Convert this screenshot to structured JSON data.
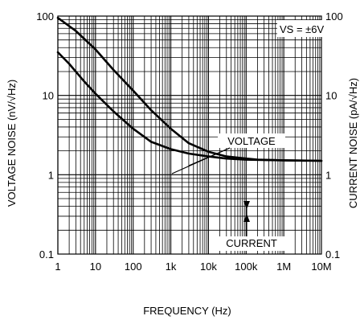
{
  "chart_data": {
    "type": "line",
    "title": "",
    "xlabel": "FREQUENCY (Hz)",
    "ylabel_left": "VOLTAGE NOISE (nV/√Hz)",
    "ylabel_right": "CURRENT  NOISE (pA/√Hz)",
    "x_scale": "log",
    "y_scale": "log",
    "xlim": [
      1,
      10000000
    ],
    "ylim": [
      0.1,
      100
    ],
    "grid": true,
    "x_ticks": [
      "1",
      "10",
      "100",
      "1k",
      "10k",
      "100k",
      "1M",
      "10M"
    ],
    "y_ticks_left": [
      "0.1",
      "1",
      "10",
      "100"
    ],
    "y_ticks_right": [
      "0.1",
      "1",
      "10",
      "100"
    ],
    "annotations": {
      "condition": "VS = ±6V",
      "voltage_label": "VOLTAGE",
      "current_label": "CURRENT"
    },
    "series": [
      {
        "name": "VOLTAGE",
        "points": [
          [
            1,
            35
          ],
          [
            2,
            25
          ],
          [
            5,
            15
          ],
          [
            10,
            10.5
          ],
          [
            30,
            6.3
          ],
          [
            100,
            3.8
          ],
          [
            300,
            2.6
          ],
          [
            1000,
            2.1
          ],
          [
            3000,
            1.85
          ],
          [
            10000,
            1.7
          ],
          [
            30000,
            1.6
          ],
          [
            100000,
            1.55
          ],
          [
            1000000,
            1.52
          ],
          [
            10000000,
            1.5
          ]
        ]
      },
      {
        "name": "CURRENT",
        "points": [
          [
            1,
            95
          ],
          [
            3,
            65
          ],
          [
            10,
            38
          ],
          [
            30,
            21
          ],
          [
            100,
            11.5
          ],
          [
            300,
            6.5
          ],
          [
            1000,
            3.8
          ],
          [
            3000,
            2.5
          ],
          [
            10000,
            1.95
          ],
          [
            30000,
            1.7
          ],
          [
            100000,
            1.6
          ],
          [
            200000,
            1.55
          ],
          [
            1000000,
            1.52
          ],
          [
            10000000,
            1.5
          ]
        ]
      }
    ]
  }
}
